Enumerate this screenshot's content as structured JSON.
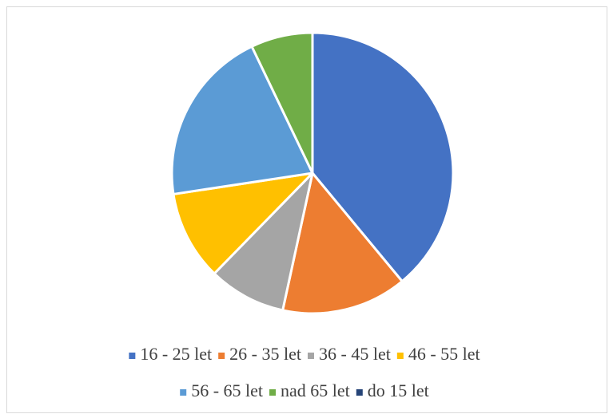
{
  "chart_data": {
    "type": "pie",
    "categories": [
      "16 - 25 let",
      "26 - 35 let",
      "36 - 45 let",
      "46 - 55 let",
      "56 - 65 let",
      "nad 65 let",
      "do 15 let"
    ],
    "values": [
      39,
      14.4,
      8.9,
      10.3,
      20.3,
      7.1,
      0
    ],
    "colors": [
      "#4472c4",
      "#ed7d31",
      "#a5a5a5",
      "#ffc000",
      "#5b9bd5",
      "#70ad47",
      "#264478"
    ],
    "legend": "bottom"
  }
}
